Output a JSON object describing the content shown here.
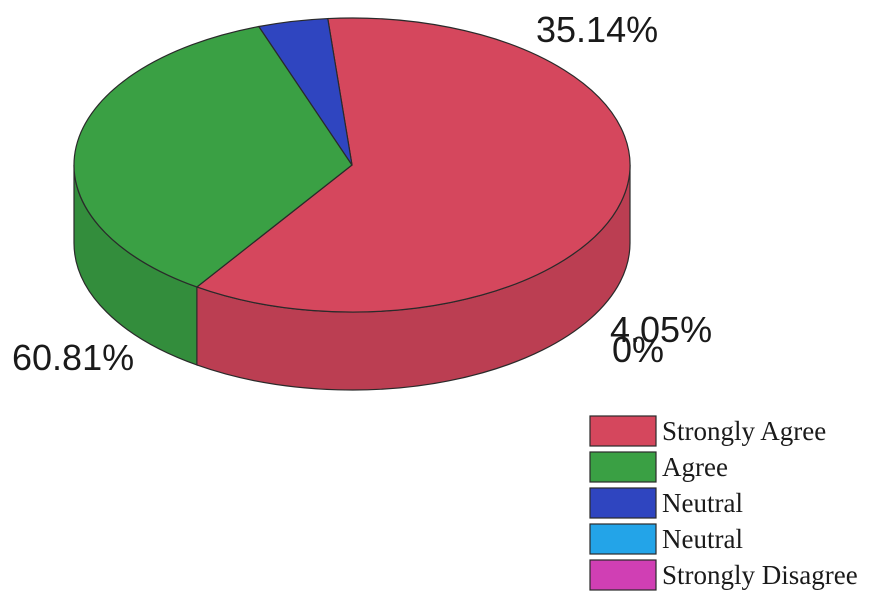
{
  "chart_data": {
    "type": "pie",
    "three_d": true,
    "slices": [
      {
        "label": "Strongly Agree",
        "value": 60.81,
        "display": "60.81%",
        "color": "#d5475d"
      },
      {
        "label": "Agree",
        "value": 35.14,
        "display": "35.14%",
        "color": "#3aa044"
      },
      {
        "label": "Neutral",
        "value": 4.05,
        "display": "4.05%",
        "color": "#2f45c0"
      },
      {
        "label": "Neutral",
        "value": 0,
        "display": "0%",
        "color": "#23a4e8"
      },
      {
        "label": "Strongly Disagree",
        "value": 0,
        "display": "",
        "color": "#d03fb4"
      }
    ],
    "legend": {
      "placement": "bottom-right",
      "entries": [
        "Strongly Agree",
        "Agree",
        "Neutral",
        "Neutral",
        "Strongly Disagree"
      ]
    }
  }
}
